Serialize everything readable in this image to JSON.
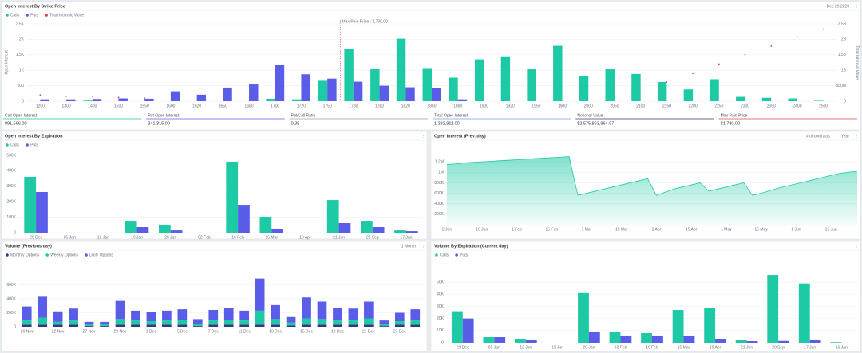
{
  "stats": [
    {
      "label": "Call Open Interest",
      "value": "891,596.00",
      "color": "#1ec9a5"
    },
    {
      "label": "Put Open Interest",
      "value": "341,315.00",
      "color": "#5a5de8"
    },
    {
      "label": "Put/Call Ratio",
      "value": "0.38",
      "color": "#9aa0a6"
    },
    {
      "label": "Total Open Interest",
      "value": "1,232,911.00",
      "color": "#7f9cf5"
    },
    {
      "label": "Notional Value",
      "value": "$2,575,863,964.97",
      "color": "#2f3b6b"
    },
    {
      "label": "Max Pain Price",
      "value": "$1,780.00",
      "color": "#e0454f"
    }
  ],
  "chart_data": [
    {
      "type": "bar",
      "title": "Open Interest By Strike Price",
      "controls": [
        "Dec 29 2023"
      ],
      "ylabel": "Open Interest",
      "y2label": "Total Intrinsic Value",
      "annotation": "Max Pain Price : 1,780.00",
      "categories": [
        "1200",
        "1300",
        "1400",
        "1500",
        "1550",
        "1600",
        "1620",
        "1650",
        "1680",
        "1700",
        "1720",
        "1750",
        "1780",
        "1800",
        "1820",
        "1850",
        "1880",
        "1900",
        "1920",
        "1950",
        "1980",
        "2000",
        "2050",
        "2100",
        "2150",
        "2200",
        "2250",
        "2300",
        "2350",
        "2400",
        "2500"
      ],
      "series": [
        {
          "name": "Calls",
          "color": "#1ec9a5",
          "values": [
            0,
            0,
            20,
            0,
            0,
            0,
            0,
            0,
            0,
            80,
            60,
            660,
            1700,
            1050,
            2020,
            1070,
            760,
            1350,
            1450,
            1030,
            1790,
            800,
            1030,
            880,
            620,
            380,
            710,
            140,
            110,
            90,
            15
          ]
        },
        {
          "name": "Puts",
          "color": "#5a5de8",
          "values": [
            60,
            60,
            70,
            90,
            80,
            320,
            210,
            440,
            540,
            1180,
            870,
            730,
            630,
            500,
            450,
            430,
            60,
            0,
            0,
            0,
            0,
            0,
            0,
            0,
            0,
            0,
            0,
            0,
            0,
            0,
            0
          ]
        },
        {
          "name": "Total Intrinsic Value",
          "color": "#e0454f",
          "axis": "y2",
          "marker": "dot",
          "values": [
            200000000,
            160000000,
            160000000,
            120000000,
            100000000,
            null,
            null,
            null,
            null,
            null,
            null,
            null,
            null,
            null,
            null,
            null,
            null,
            null,
            null,
            null,
            null,
            null,
            null,
            null,
            620000000,
            900000000,
            1200000000,
            1500000000,
            1780000000,
            2080000000,
            2330000000
          ]
        }
      ],
      "ylim": [
        0,
        2500
      ],
      "yticks": [
        0,
        500,
        {
          "value": 1000,
          "label": "1K"
        },
        {
          "value": 1500,
          "label": "1.5K"
        },
        {
          "value": 2000,
          "label": "2K"
        },
        {
          "value": 2500,
          "label": "2.5K"
        }
      ],
      "y2lim": [
        0,
        2500000000
      ],
      "y2ticks": [
        0,
        {
          "value": 500000000,
          "label": "500M"
        },
        {
          "value": 1000000000,
          "label": "1B"
        },
        {
          "value": 1500000000,
          "label": "1.5B"
        },
        {
          "value": 2000000000,
          "label": "2B"
        },
        {
          "value": 2500000000,
          "label": "2.5B"
        }
      ],
      "grid": true
    },
    {
      "type": "bar",
      "title": "Open Interest By Expiration",
      "controls": [],
      "categories": [
        "29 Dec",
        "05 Jan",
        "12 Jan",
        "19 Jan",
        "26 Jan",
        "02 Feb",
        "16 Feb",
        "15 Mar",
        "19 Apr",
        "21 Jun",
        "20 Sep",
        "17 Jan"
      ],
      "series": [
        {
          "name": "Calls",
          "color": "#1ec9a5",
          "values": [
            361000,
            0,
            0,
            77000,
            52000,
            0,
            459000,
            103000,
            0,
            211000,
            77000,
            15000
          ]
        },
        {
          "name": "Puts",
          "color": "#5a5de8",
          "values": [
            263000,
            0,
            0,
            36000,
            15000,
            0,
            180000,
            26000,
            0,
            62000,
            36000,
            10000
          ]
        }
      ],
      "ylim": [
        0,
        500000
      ],
      "yticks": [
        0,
        {
          "value": 100000,
          "label": "100K"
        },
        {
          "value": 200000,
          "label": "200K"
        },
        {
          "value": 300000,
          "label": "300K"
        },
        {
          "value": 400000,
          "label": "400K"
        },
        {
          "value": 500000,
          "label": "500K"
        }
      ],
      "grid": true
    },
    {
      "type": "area",
      "title": "Open Interest (Prev. day)",
      "controls": [
        "# of contracts",
        "Year"
      ],
      "categories": [
        "2 Jan",
        null,
        null,
        null,
        "16 Jan",
        null,
        null,
        null,
        "1 Feb",
        null,
        null,
        null,
        "15 Feb",
        null,
        null,
        null,
        "1 Mar",
        null,
        null,
        null,
        "15 Mar",
        null,
        null,
        null,
        "1 Apr",
        null,
        null,
        null,
        "15 Apr",
        null,
        null,
        null,
        "1 May",
        null,
        null,
        null,
        "15 May",
        null,
        null,
        null,
        "1 Jun",
        null,
        null,
        null,
        "15 Jun",
        null,
        null,
        null
      ],
      "series": [
        {
          "name": "Open Interest",
          "color": "#1ec9a5",
          "values": [
            1150000,
            1160000,
            1180000,
            1190000,
            1200000,
            1210000,
            1220000,
            1230000,
            1240000,
            1250000,
            1260000,
            1270000,
            1280000,
            1290000,
            1300000,
            560000,
            600000,
            640000,
            680000,
            720000,
            760000,
            800000,
            840000,
            880000,
            560000,
            620000,
            680000,
            720000,
            760000,
            800000,
            640000,
            680000,
            720000,
            760000,
            800000,
            560000,
            600000,
            650000,
            700000,
            740000,
            780000,
            820000,
            860000,
            900000,
            940000,
            980000,
            1000000,
            1020000
          ]
        }
      ],
      "ylim": [
        0,
        1400000
      ],
      "yticks": [
        {
          "value": 200000,
          "label": "200K"
        },
        {
          "value": 400000,
          "label": "400K"
        },
        {
          "value": 600000,
          "label": "600K"
        },
        {
          "value": 800000,
          "label": "800K"
        },
        {
          "value": 1000000,
          "label": "1M"
        },
        {
          "value": 1200000,
          "label": "1.2M"
        }
      ],
      "grid": true
    },
    {
      "type": "stacked_bar",
      "title": "Volume (Previous day)",
      "controls": [
        "1 Month"
      ],
      "categories": [
        "20 Nov",
        null,
        "22 Nov",
        null,
        "27 Nov",
        null,
        "29 Nov",
        null,
        "1 Dec",
        null,
        "5 Dec",
        null,
        "7 Dec",
        null,
        "11 Dec",
        null,
        "13 Dec",
        null,
        "15 Dec",
        null,
        "19 Dec",
        null,
        "21 Dec",
        null,
        "27 Dec",
        null
      ],
      "series": [
        {
          "name": "Monthly Options",
          "color": "#33387f",
          "values": [
            30000,
            30000,
            30000,
            30000,
            10000,
            10000,
            30000,
            30000,
            30000,
            30000,
            30000,
            10000,
            30000,
            30000,
            30000,
            30000,
            30000,
            20000,
            30000,
            30000,
            30000,
            30000,
            30000,
            10000,
            30000,
            30000
          ]
        },
        {
          "name": "Weekly Options",
          "color": "#1ec9a5",
          "values": [
            60000,
            100000,
            40000,
            60000,
            20000,
            20000,
            80000,
            60000,
            50000,
            60000,
            70000,
            30000,
            60000,
            70000,
            60000,
            200000,
            80000,
            40000,
            90000,
            80000,
            60000,
            60000,
            90000,
            20000,
            50000,
            60000
          ]
        },
        {
          "name": "Daily Options",
          "color": "#5a5de8",
          "values": [
            200000,
            300000,
            150000,
            170000,
            40000,
            40000,
            260000,
            140000,
            130000,
            140000,
            150000,
            70000,
            150000,
            170000,
            140000,
            460000,
            200000,
            80000,
            300000,
            250000,
            180000,
            170000,
            240000,
            60000,
            120000,
            160000
          ]
        }
      ],
      "ylim": [
        0,
        800000
      ],
      "yticks": [
        0,
        {
          "value": 200000,
          "label": "200K"
        },
        {
          "value": 400000,
          "label": "400K"
        },
        {
          "value": 600000,
          "label": "600K"
        }
      ],
      "grid": true
    },
    {
      "type": "bar",
      "title": "Volume By Expiration (Current day)",
      "controls": [],
      "categories": [
        "29 Dec",
        "05 Jan",
        "12 Jan",
        "19 Jan",
        "26 Jan",
        "02 Feb",
        "16 Feb",
        "15 Mar",
        "19 Apr",
        "21 Jun",
        "20 Sep",
        "17 Jan",
        "16 Jan"
      ],
      "series": [
        {
          "name": "Calls",
          "color": "#1ec9a5",
          "values": [
            26000,
            4600,
            3000,
            0,
            41000,
            8600,
            7900,
            27000,
            29000,
            2000,
            56000,
            49000,
            500
          ]
        },
        {
          "name": "Puts",
          "color": "#5a5de8",
          "values": [
            20000,
            4600,
            2000,
            0,
            8600,
            5300,
            5300,
            5300,
            3300,
            1300,
            1500,
            2000,
            0
          ]
        }
      ],
      "ylim": [
        0,
        60000
      ],
      "yticks": [
        0,
        {
          "value": 10000,
          "label": "10K"
        },
        {
          "value": 20000,
          "label": "20K"
        },
        {
          "value": 30000,
          "label": "30K"
        },
        {
          "value": 40000,
          "label": "40K"
        },
        {
          "value": 50000,
          "label": "50K"
        }
      ],
      "grid": true
    }
  ]
}
